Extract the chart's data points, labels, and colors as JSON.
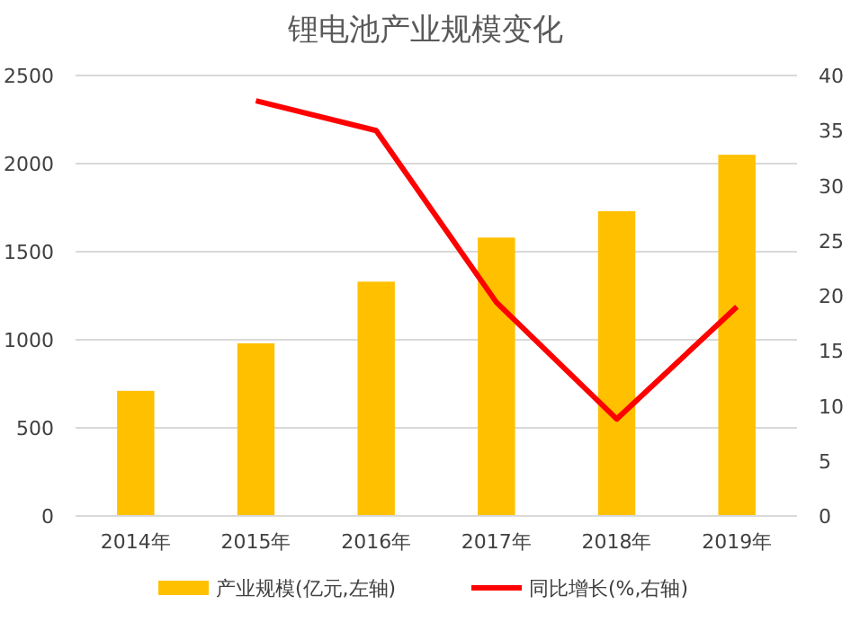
{
  "chart_data": {
    "type": "bar",
    "title": "锂电池产业规模变化",
    "categories": [
      "2014年",
      "2015年",
      "2016年",
      "2017年",
      "2018年",
      "2019年"
    ],
    "series": [
      {
        "name": "产业规模(亿元,左轴)",
        "color": "#ffc000",
        "values": [
          710,
          980,
          1330,
          1580,
          1730,
          2050
        ]
      },
      {
        "name": "同比增长(%,右轴)",
        "type": "line",
        "axis": "y2",
        "color": "#ff0000",
        "values": [
          null,
          37.7,
          35.0,
          19.4,
          8.8,
          19.0
        ]
      }
    ],
    "ylim": [
      0,
      2500
    ],
    "yticks": [
      0,
      500,
      1000,
      1500,
      2000,
      2500
    ],
    "y2lim": [
      0,
      40
    ],
    "y2ticks": [
      0,
      5,
      10,
      15,
      20,
      25,
      30,
      35,
      40
    ],
    "grid": "y",
    "legend": "bottom"
  }
}
